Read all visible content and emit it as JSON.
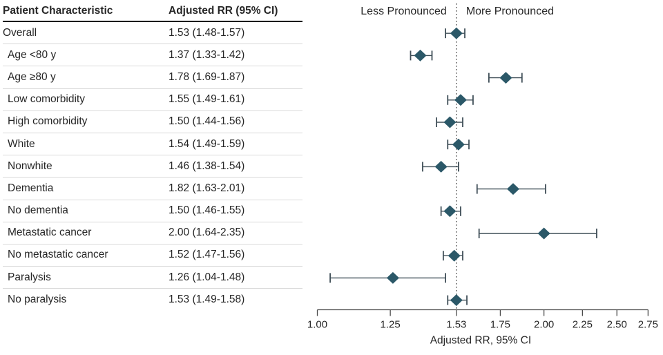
{
  "table": {
    "col1_header": "Patient Characteristic",
    "col2_header": "Adjusted RR (95% CI)"
  },
  "chart_data": {
    "type": "scatter",
    "variant": "forest-plot",
    "xlabel": "Adjusted RR, 95% CI",
    "x_scale": "log",
    "xlim": [
      1.0,
      2.75
    ],
    "x_ticks": [
      1.0,
      1.25,
      1.53,
      1.75,
      2.0,
      2.25,
      2.5,
      2.75
    ],
    "x_tick_labels": [
      "1.00",
      "1.25",
      "1.53",
      "1.75",
      "2.00",
      "2.25",
      "2.50",
      "2.75"
    ],
    "reference_line": 1.53,
    "region_labels": {
      "left": "Less Pronounced",
      "right": "More Pronounced"
    },
    "grid": false,
    "rows": [
      {
        "label": "Overall",
        "text": "1.53 (1.48-1.57)",
        "estimate": 1.53,
        "ci_low": 1.48,
        "ci_high": 1.57,
        "indent": false
      },
      {
        "label": "Age <80 y",
        "text": "1.37 (1.33-1.42)",
        "estimate": 1.37,
        "ci_low": 1.33,
        "ci_high": 1.42,
        "indent": true
      },
      {
        "label": "Age ≥80 y",
        "text": "1.78 (1.69-1.87)",
        "estimate": 1.78,
        "ci_low": 1.69,
        "ci_high": 1.87,
        "indent": true
      },
      {
        "label": "Low comorbidity",
        "text": "1.55 (1.49-1.61)",
        "estimate": 1.55,
        "ci_low": 1.49,
        "ci_high": 1.61,
        "indent": true
      },
      {
        "label": "High comorbidity",
        "text": "1.50 (1.44-1.56)",
        "estimate": 1.5,
        "ci_low": 1.44,
        "ci_high": 1.56,
        "indent": true
      },
      {
        "label": "White",
        "text": "1.54 (1.49-1.59)",
        "estimate": 1.54,
        "ci_low": 1.49,
        "ci_high": 1.59,
        "indent": true
      },
      {
        "label": "Nonwhite",
        "text": "1.46 (1.38-1.54)",
        "estimate": 1.46,
        "ci_low": 1.38,
        "ci_high": 1.54,
        "indent": true
      },
      {
        "label": "Dementia",
        "text": "1.82 (1.63-2.01)",
        "estimate": 1.82,
        "ci_low": 1.63,
        "ci_high": 2.01,
        "indent": true
      },
      {
        "label": "No dementia",
        "text": "1.50 (1.46-1.55)",
        "estimate": 1.5,
        "ci_low": 1.46,
        "ci_high": 1.55,
        "indent": true
      },
      {
        "label": "Metastatic cancer",
        "text": "2.00 (1.64-2.35)",
        "estimate": 2.0,
        "ci_low": 1.64,
        "ci_high": 2.35,
        "indent": true
      },
      {
        "label": "No metastatic cancer",
        "text": "1.52 (1.47-1.56)",
        "estimate": 1.52,
        "ci_low": 1.47,
        "ci_high": 1.56,
        "indent": true
      },
      {
        "label": "Paralysis",
        "text": "1.26 (1.04-1.48)",
        "estimate": 1.26,
        "ci_low": 1.04,
        "ci_high": 1.48,
        "indent": true
      },
      {
        "label": "No paralysis",
        "text": "1.53 (1.49-1.58)",
        "estimate": 1.53,
        "ci_low": 1.49,
        "ci_high": 1.58,
        "indent": true
      }
    ]
  },
  "colors": {
    "diamond": "#2b5868",
    "whisker": "#3f4e57",
    "reference_line": "#4d4d4d",
    "axis": "#4a4a4a",
    "text": "#262626",
    "header_rule": "#000000",
    "row_divider": "#d8d8d8"
  }
}
